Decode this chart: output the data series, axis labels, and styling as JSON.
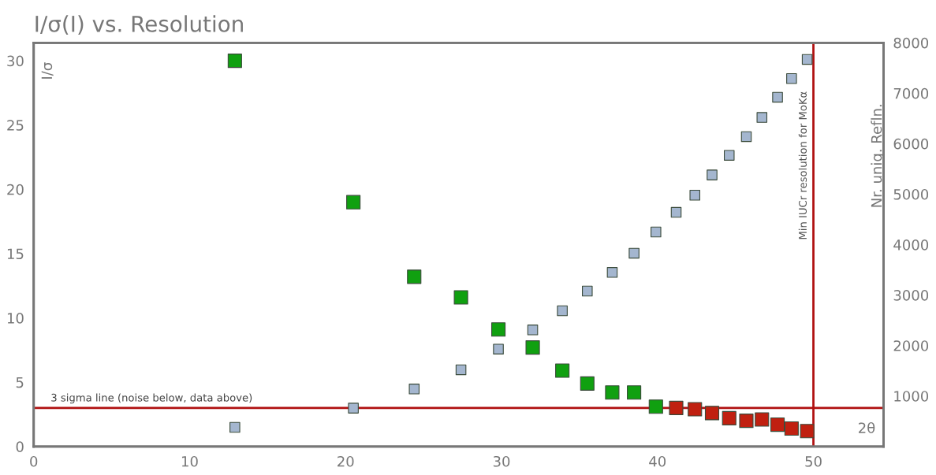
{
  "chart_data": {
    "type": "scatter",
    "title": "I/σ(I) vs. Resolution",
    "xlabel": "2θ",
    "ylabel": "I/σ",
    "y2label": "Nr. uniq. Refln.",
    "x": [
      12.9,
      20.5,
      24.4,
      27.4,
      29.8,
      32.0,
      33.9,
      35.5,
      37.1,
      38.5,
      39.9,
      41.2,
      42.4,
      43.5,
      44.6,
      45.7,
      46.7,
      47.7,
      48.6,
      49.6
    ],
    "series": [
      {
        "colors": [
          "#10a010",
          "#10a010",
          "#10a010",
          "#10a010",
          "#10a010",
          "#10a010",
          "#10a010",
          "#10a010",
          "#10a010",
          "#10a010",
          "#10a010",
          "#c02010",
          "#c02010",
          "#c02010",
          "#c02010",
          "#c02010",
          "#c02010",
          "#c02010",
          "#c02010",
          "#c02010"
        ],
        "values": [
          30.0,
          19.0,
          13.2,
          11.6,
          9.1,
          7.7,
          5.9,
          4.9,
          4.2,
          4.2,
          3.1,
          3.0,
          2.9,
          2.6,
          2.2,
          2.0,
          2.1,
          1.7,
          1.4,
          1.2
        ]
      },
      {
        "axis": "y2",
        "color": "#a4b6cf",
        "values": [
          380,
          760,
          1140,
          1520,
          1930,
          2310,
          2690,
          3080,
          3450,
          3830,
          4250,
          4640,
          4980,
          5380,
          5770,
          6140,
          6520,
          6920,
          7290,
          7670
        ]
      }
    ],
    "xlim": [
      0,
      54.5
    ],
    "xticks": [
      0,
      10,
      20,
      30,
      40,
      50
    ],
    "ylim": [
      0,
      31.4
    ],
    "yticks": [
      0,
      5,
      10,
      15,
      20,
      25,
      30
    ],
    "y2lim": [
      0,
      8000
    ],
    "y2ticks": [
      1000,
      2000,
      3000,
      4000,
      5000,
      6000,
      7000,
      8000
    ],
    "ref_lines": [
      {
        "axis": "y",
        "value": 3,
        "label": "3 sigma line (noise below, data above)",
        "color": "#b01010"
      },
      {
        "axis": "x",
        "value": 50,
        "label": "Min IUCr resolution for MoKα",
        "color": "#b01010"
      }
    ],
    "marker": "square",
    "grid": false,
    "legend": false
  }
}
